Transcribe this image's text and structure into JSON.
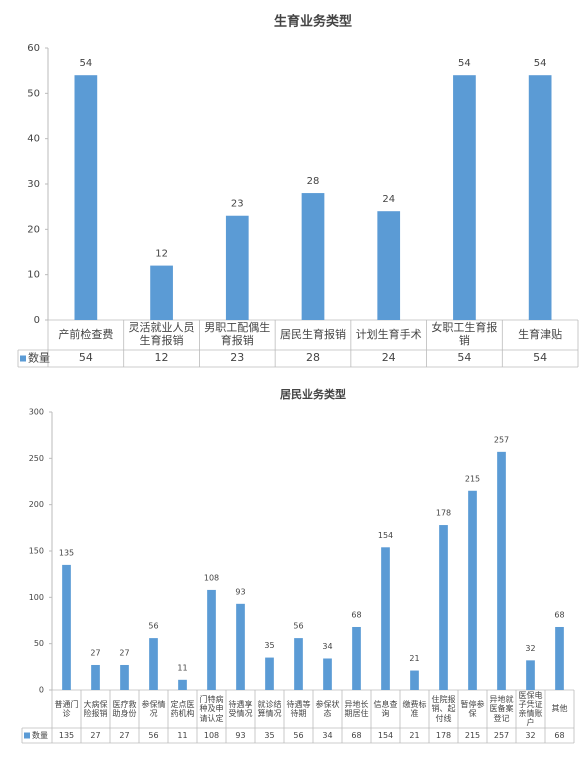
{
  "chart_data": [
    {
      "type": "bar",
      "title": "生育业务类型",
      "categories": [
        "产前检查费",
        "灵活就业人员生育报销",
        "男职工配偶生育报销",
        "居民生育报销",
        "计划生育手术",
        "女职工生育报销",
        "生育津贴"
      ],
      "series": [
        {
          "name": "数量",
          "color": "#5b9bd5",
          "values": [
            54,
            12,
            23,
            28,
            24,
            54,
            54
          ]
        }
      ],
      "ylim": [
        0,
        60
      ],
      "yticks": [
        0,
        10,
        20,
        30,
        40,
        50,
        60
      ]
    },
    {
      "type": "bar",
      "title": "居民业务类型",
      "categories": [
        "普通门诊",
        "大病保险报销",
        "医疗救助身份",
        "参保情况",
        "定点医药机构",
        "门特病种及申请认定",
        "待遇享受情况",
        "就诊结算情况",
        "待遇等待期",
        "参保状态",
        "异地长期居住",
        "信息查询",
        "缴费标准",
        "住院报销、起付线",
        "暂停参保",
        "异地就医备案登记",
        "医保电子凭证亲情账户",
        "其他"
      ],
      "series": [
        {
          "name": "数量",
          "color": "#5b9bd5",
          "values": [
            135,
            27,
            27,
            56,
            11,
            108,
            93,
            35,
            56,
            34,
            68,
            154,
            21,
            178,
            215,
            257,
            32,
            68
          ]
        }
      ],
      "ylim": [
        0,
        300
      ],
      "yticks": [
        0,
        50,
        100,
        150,
        200,
        250,
        300
      ]
    }
  ]
}
